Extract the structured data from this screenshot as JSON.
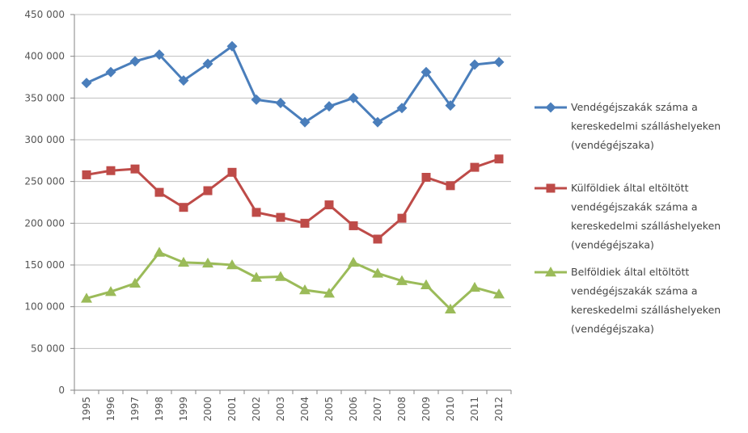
{
  "chart_data": {
    "type": "line",
    "title": "",
    "xlabel": "",
    "ylabel": "",
    "categories": [
      "1995",
      "1996",
      "1997",
      "1998",
      "1999",
      "2000",
      "2001",
      "2002",
      "2003",
      "2004",
      "2005",
      "2006",
      "2007",
      "2008",
      "2009",
      "2010",
      "2011",
      "2012"
    ],
    "ylim": [
      0,
      450000
    ],
    "yticks": [
      0,
      50000,
      100000,
      150000,
      200000,
      250000,
      300000,
      350000,
      400000,
      450000
    ],
    "ytick_labels": [
      "0",
      "50 000",
      "100 000",
      "150 000",
      "200 000",
      "250 000",
      "300 000",
      "350 000",
      "400 000",
      "450 000"
    ],
    "grid": "horizontal",
    "legend_position": "right",
    "series": [
      {
        "name_lines": [
          "Vendégéjszakák száma a",
          "kereskedelmi szálláshelyeken",
          "(vendégéjszaka)"
        ],
        "color": "#4A7EBB",
        "marker": "diamond",
        "values": [
          368000,
          381000,
          394000,
          402000,
          371000,
          391000,
          412000,
          348000,
          344000,
          321000,
          340000,
          350000,
          321000,
          338000,
          381000,
          341000,
          390000,
          393000
        ]
      },
      {
        "name_lines": [
          "Külföldiek által eltöltött",
          "vendégéjszakák száma a",
          "kereskedelmi szálláshelyeken",
          "(vendégéjszaka)"
        ],
        "color": "#BE4B48",
        "marker": "square",
        "values": [
          258000,
          263000,
          265000,
          237000,
          219000,
          239000,
          261000,
          213000,
          207000,
          200000,
          222000,
          197000,
          181000,
          206000,
          255000,
          245000,
          267000,
          277000
        ]
      },
      {
        "name_lines": [
          "Belföldiek által eltöltött",
          "vendégéjszakák száma a",
          "kereskedelmi szálláshelyeken",
          "(vendégéjszaka)"
        ],
        "color": "#9BBB59",
        "marker": "triangle",
        "values": [
          110000,
          118000,
          128000,
          165000,
          153000,
          152000,
          150000,
          135000,
          136000,
          120000,
          116000,
          153000,
          140000,
          131000,
          126000,
          97000,
          123000,
          115000
        ]
      }
    ]
  }
}
